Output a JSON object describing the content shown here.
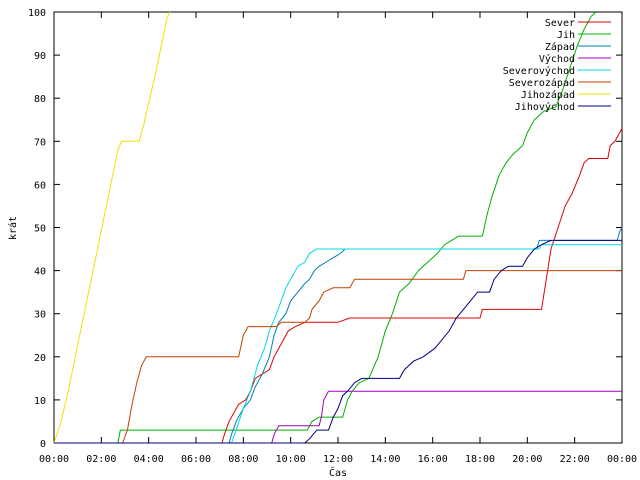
{
  "chart_data": {
    "type": "line",
    "xlabel": "Čas",
    "ylabel": "krát",
    "xlim": [
      0,
      24
    ],
    "ylim": [
      0,
      100
    ],
    "grid": false,
    "legend_position": "top-right",
    "x_ticks": [
      {
        "value": 0,
        "label": "00:00"
      },
      {
        "value": 2,
        "label": "02:00"
      },
      {
        "value": 4,
        "label": "04:00"
      },
      {
        "value": 6,
        "label": "06:00"
      },
      {
        "value": 8,
        "label": "08:00"
      },
      {
        "value": 10,
        "label": "10:00"
      },
      {
        "value": 12,
        "label": "12:00"
      },
      {
        "value": 14,
        "label": "14:00"
      },
      {
        "value": 16,
        "label": "16:00"
      },
      {
        "value": 18,
        "label": "18:00"
      },
      {
        "value": 20,
        "label": "20:00"
      },
      {
        "value": 22,
        "label": "22:00"
      },
      {
        "value": 24,
        "label": "00:00"
      }
    ],
    "y_ticks": [
      {
        "value": 0,
        "label": "0"
      },
      {
        "value": 10,
        "label": "10"
      },
      {
        "value": 20,
        "label": "20"
      },
      {
        "value": 30,
        "label": "30"
      },
      {
        "value": 40,
        "label": "40"
      },
      {
        "value": 50,
        "label": "50"
      },
      {
        "value": 60,
        "label": "60"
      },
      {
        "value": 70,
        "label": "70"
      },
      {
        "value": 80,
        "label": "80"
      },
      {
        "value": 90,
        "label": "90"
      },
      {
        "value": 100,
        "label": "100"
      }
    ],
    "series": [
      {
        "name": "Sever",
        "color": "#e00000",
        "points": [
          [
            0,
            0
          ],
          [
            7.1,
            0
          ],
          [
            7.2,
            2
          ],
          [
            7.4,
            5
          ],
          [
            7.6,
            7
          ],
          [
            7.8,
            9
          ],
          [
            8.1,
            10
          ],
          [
            8.3,
            12
          ],
          [
            8.5,
            15
          ],
          [
            8.8,
            16
          ],
          [
            9.1,
            17
          ],
          [
            9.3,
            20
          ],
          [
            9.6,
            23
          ],
          [
            9.9,
            26
          ],
          [
            10.2,
            27
          ],
          [
            10.6,
            28
          ],
          [
            12.0,
            28
          ],
          [
            12.5,
            29
          ],
          [
            18.0,
            29
          ],
          [
            18.1,
            31
          ],
          [
            20.6,
            31
          ],
          [
            20.8,
            38
          ],
          [
            21.0,
            45
          ],
          [
            21.3,
            50
          ],
          [
            21.6,
            55
          ],
          [
            21.9,
            58
          ],
          [
            22.2,
            62
          ],
          [
            22.4,
            65
          ],
          [
            22.6,
            66
          ],
          [
            23.4,
            66
          ],
          [
            23.5,
            69
          ],
          [
            23.7,
            70
          ],
          [
            23.9,
            72
          ],
          [
            24.0,
            73
          ]
        ]
      },
      {
        "name": "Jih",
        "color": "#00b000",
        "points": [
          [
            0,
            0
          ],
          [
            2.7,
            0
          ],
          [
            2.8,
            3
          ],
          [
            10.7,
            3
          ],
          [
            10.9,
            5
          ],
          [
            11.2,
            6
          ],
          [
            12.2,
            6
          ],
          [
            12.4,
            10
          ],
          [
            12.6,
            12
          ],
          [
            12.9,
            14
          ],
          [
            13.3,
            15
          ],
          [
            13.7,
            20
          ],
          [
            14.0,
            26
          ],
          [
            14.3,
            30
          ],
          [
            14.6,
            35
          ],
          [
            15.0,
            37
          ],
          [
            15.4,
            40
          ],
          [
            15.8,
            42
          ],
          [
            16.2,
            44
          ],
          [
            16.5,
            46
          ],
          [
            16.8,
            47
          ],
          [
            17.1,
            48
          ],
          [
            18.1,
            48
          ],
          [
            18.3,
            53
          ],
          [
            18.5,
            57
          ],
          [
            18.8,
            62
          ],
          [
            19.1,
            65
          ],
          [
            19.4,
            67
          ],
          [
            19.6,
            68
          ],
          [
            19.8,
            69
          ],
          [
            20.0,
            72
          ],
          [
            20.3,
            75
          ],
          [
            20.7,
            77
          ],
          [
            21.2,
            78
          ],
          [
            21.5,
            82
          ],
          [
            21.8,
            87
          ],
          [
            22.1,
            92
          ],
          [
            22.4,
            96
          ],
          [
            22.7,
            99
          ],
          [
            22.9,
            100
          ]
        ]
      },
      {
        "name": "Západ",
        "color": "#0080b0",
        "points": [
          [
            0,
            0
          ],
          [
            7.4,
            0
          ],
          [
            7.5,
            2
          ],
          [
            7.7,
            5
          ],
          [
            8.0,
            8
          ],
          [
            8.3,
            10
          ],
          [
            8.5,
            13
          ],
          [
            8.8,
            16
          ],
          [
            9.1,
            20
          ],
          [
            9.3,
            25
          ],
          [
            9.5,
            28
          ],
          [
            9.8,
            30
          ],
          [
            10.0,
            33
          ],
          [
            10.3,
            35
          ],
          [
            10.6,
            37
          ],
          [
            10.8,
            38
          ],
          [
            11.0,
            40
          ],
          [
            11.2,
            41
          ],
          [
            11.5,
            42
          ],
          [
            11.8,
            43
          ],
          [
            12.1,
            44
          ],
          [
            12.3,
            45
          ],
          [
            20.4,
            45
          ],
          [
            20.5,
            47
          ],
          [
            23.8,
            47
          ],
          [
            23.9,
            49
          ],
          [
            24.0,
            50
          ]
        ]
      },
      {
        "name": "Východ",
        "color": "#a000c0",
        "points": [
          [
            0,
            0
          ],
          [
            9.2,
            0
          ],
          [
            9.3,
            2
          ],
          [
            9.5,
            4
          ],
          [
            11.2,
            4
          ],
          [
            11.3,
            6
          ],
          [
            11.4,
            10
          ],
          [
            11.6,
            12
          ],
          [
            24.0,
            12
          ]
        ]
      },
      {
        "name": "Severovýchod",
        "color": "#00d8e8",
        "points": [
          [
            0,
            0
          ],
          [
            7.5,
            0
          ],
          [
            7.7,
            3
          ],
          [
            8.0,
            8
          ],
          [
            8.3,
            12
          ],
          [
            8.6,
            18
          ],
          [
            8.9,
            22
          ],
          [
            9.1,
            26
          ],
          [
            9.4,
            30
          ],
          [
            9.6,
            33
          ],
          [
            9.8,
            36
          ],
          [
            10.1,
            39
          ],
          [
            10.3,
            41
          ],
          [
            10.6,
            42
          ],
          [
            10.8,
            44
          ],
          [
            11.1,
            45
          ],
          [
            20.5,
            45
          ],
          [
            20.6,
            46
          ],
          [
            24.0,
            46
          ]
        ]
      },
      {
        "name": "Severozápad",
        "color": "#c04000",
        "points": [
          [
            0,
            0
          ],
          [
            2.9,
            0
          ],
          [
            3.1,
            3
          ],
          [
            3.3,
            9
          ],
          [
            3.5,
            14
          ],
          [
            3.7,
            18
          ],
          [
            3.9,
            20
          ],
          [
            7.8,
            20
          ],
          [
            8.0,
            25
          ],
          [
            8.2,
            27
          ],
          [
            9.4,
            27
          ],
          [
            9.6,
            28
          ],
          [
            10.6,
            28
          ],
          [
            10.8,
            29
          ],
          [
            10.9,
            31
          ],
          [
            11.2,
            33
          ],
          [
            11.4,
            35
          ],
          [
            11.8,
            36
          ],
          [
            12.5,
            36
          ],
          [
            12.7,
            38
          ],
          [
            17.3,
            38
          ],
          [
            17.4,
            40
          ],
          [
            24.0,
            40
          ]
        ]
      },
      {
        "name": "Jihozápad",
        "color": "#f0e000",
        "points": [
          [
            0,
            0
          ],
          [
            0.3,
            5
          ],
          [
            0.6,
            12
          ],
          [
            0.9,
            20
          ],
          [
            1.2,
            28
          ],
          [
            1.5,
            36
          ],
          [
            1.8,
            44
          ],
          [
            2.1,
            52
          ],
          [
            2.4,
            60
          ],
          [
            2.7,
            68
          ],
          [
            2.85,
            70
          ],
          [
            3.6,
            70
          ],
          [
            3.8,
            74
          ],
          [
            4.0,
            79
          ],
          [
            4.3,
            86
          ],
          [
            4.6,
            94
          ],
          [
            4.8,
            99
          ],
          [
            4.9,
            100
          ]
        ]
      },
      {
        "name": "Jihovýchod",
        "color": "#000080",
        "points": [
          [
            0,
            0
          ],
          [
            10.6,
            0
          ],
          [
            10.8,
            1
          ],
          [
            11.1,
            3
          ],
          [
            11.6,
            3
          ],
          [
            11.8,
            6
          ],
          [
            12.0,
            8
          ],
          [
            12.2,
            11
          ],
          [
            12.4,
            12
          ],
          [
            12.7,
            14
          ],
          [
            13.0,
            15
          ],
          [
            14.6,
            15
          ],
          [
            14.8,
            17
          ],
          [
            15.2,
            19
          ],
          [
            15.6,
            20
          ],
          [
            16.1,
            22
          ],
          [
            16.4,
            24
          ],
          [
            16.7,
            26
          ],
          [
            17.0,
            29
          ],
          [
            17.3,
            31
          ],
          [
            17.6,
            33
          ],
          [
            17.9,
            35
          ],
          [
            18.4,
            35
          ],
          [
            18.6,
            38
          ],
          [
            18.9,
            40
          ],
          [
            19.2,
            41
          ],
          [
            19.8,
            41
          ],
          [
            20.0,
            43
          ],
          [
            20.3,
            45
          ],
          [
            20.6,
            46
          ],
          [
            21.0,
            47
          ],
          [
            24.0,
            47
          ]
        ]
      }
    ]
  }
}
